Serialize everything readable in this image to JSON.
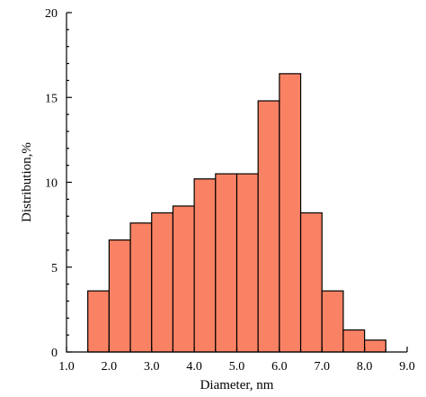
{
  "chart_data": {
    "type": "bar",
    "subtype": "histogram",
    "bin_width": 0.5,
    "bin_starts": [
      1.5,
      2.0,
      2.5,
      3.0,
      3.5,
      4.0,
      4.5,
      5.0,
      5.5,
      6.0,
      6.5,
      7.0,
      7.5,
      8.0
    ],
    "values": [
      3.6,
      6.6,
      7.6,
      8.2,
      8.6,
      10.2,
      10.5,
      10.5,
      14.8,
      16.4,
      8.2,
      3.6,
      1.3,
      0.7
    ],
    "bar_color": "#fa8264",
    "edge_color": "#000000",
    "xlabel": "Diameter, nm",
    "ylabel": "Distribution,%",
    "xlim": [
      1.0,
      9.0
    ],
    "ylim": [
      0,
      20
    ],
    "x_ticks": [
      "1.0",
      "2.0",
      "3.0",
      "4.0",
      "5.0",
      "6.0",
      "7.0",
      "8.0",
      "9.0"
    ],
    "y_ticks": [
      "0",
      "5",
      "10",
      "15",
      "20"
    ],
    "grid": false,
    "legend": "none"
  }
}
